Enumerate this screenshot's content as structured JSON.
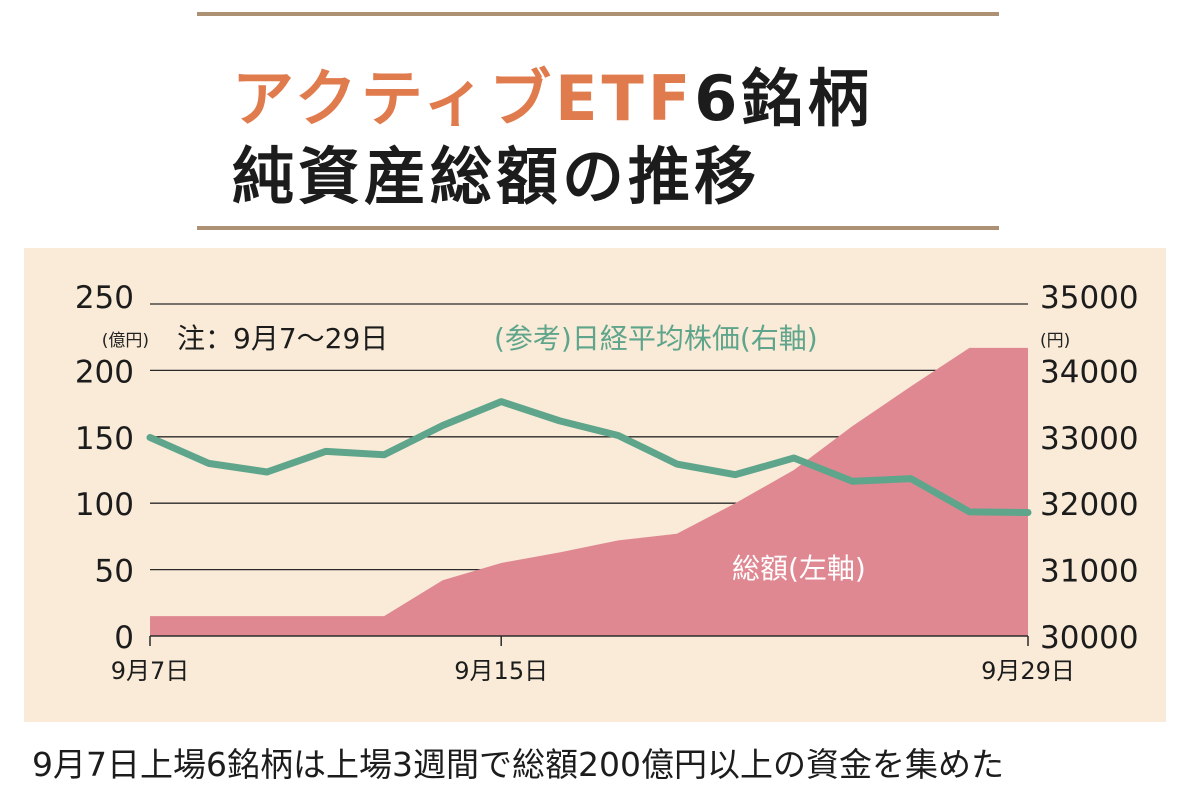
{
  "title": {
    "accent": "アクティブETF",
    "rest": "6銘柄",
    "line2": "純資産総額の推移"
  },
  "caption": "9月7日上場6銘柄は上場3週間で総額200億円以上の資金を集めた",
  "colors": {
    "area": "#e08892",
    "line": "#5fa58b",
    "panel": "#f9ebd8",
    "accent": "#e07b4d",
    "rule": "#ad9175"
  },
  "chart_data": {
    "type": "line+area",
    "note": "注：9月7～29日",
    "xticks": [
      "9月7日",
      "9月15日",
      "9月29日"
    ],
    "left_axis": {
      "unit": "(億円)",
      "ticks": [
        "250",
        "200",
        "150",
        "100",
        "50",
        "0"
      ],
      "range": [
        0,
        250
      ]
    },
    "right_axis": {
      "unit": "(円)",
      "ticks": [
        "35000",
        "34000",
        "33000",
        "32000",
        "31000",
        "30000"
      ],
      "range": [
        30000,
        35000
      ]
    },
    "grid": true,
    "series": [
      {
        "name": "総額(左軸)",
        "axis": "left",
        "type": "area",
        "x": [
          "9月7日",
          "9月8日",
          "9月11日",
          "9月12日",
          "9月13日",
          "9月14日",
          "9月15日",
          "9月19日",
          "9月20日",
          "9月21日",
          "9月22日",
          "9月25日",
          "9月26日",
          "9月27日",
          "9月28日",
          "9月29日"
        ],
        "values": [
          15,
          15,
          15,
          15,
          15,
          42,
          55,
          63,
          72,
          77,
          100,
          125,
          158,
          188,
          217,
          217
        ]
      },
      {
        "name": "(参考)日経平均株価(右軸)",
        "axis": "right",
        "type": "line",
        "x": [
          "9月7日",
          "9月8日",
          "9月11日",
          "9月12日",
          "9月13日",
          "9月14日",
          "9月15日",
          "9月19日",
          "9月20日",
          "9月21日",
          "9月22日",
          "9月25日",
          "9月26日",
          "9月27日",
          "9月28日",
          "9月29日"
        ],
        "values": [
          32990,
          32600,
          32470,
          32780,
          32730,
          33170,
          33530,
          33240,
          33020,
          32590,
          32430,
          32680,
          32330,
          32370,
          31870,
          31860
        ]
      }
    ]
  }
}
